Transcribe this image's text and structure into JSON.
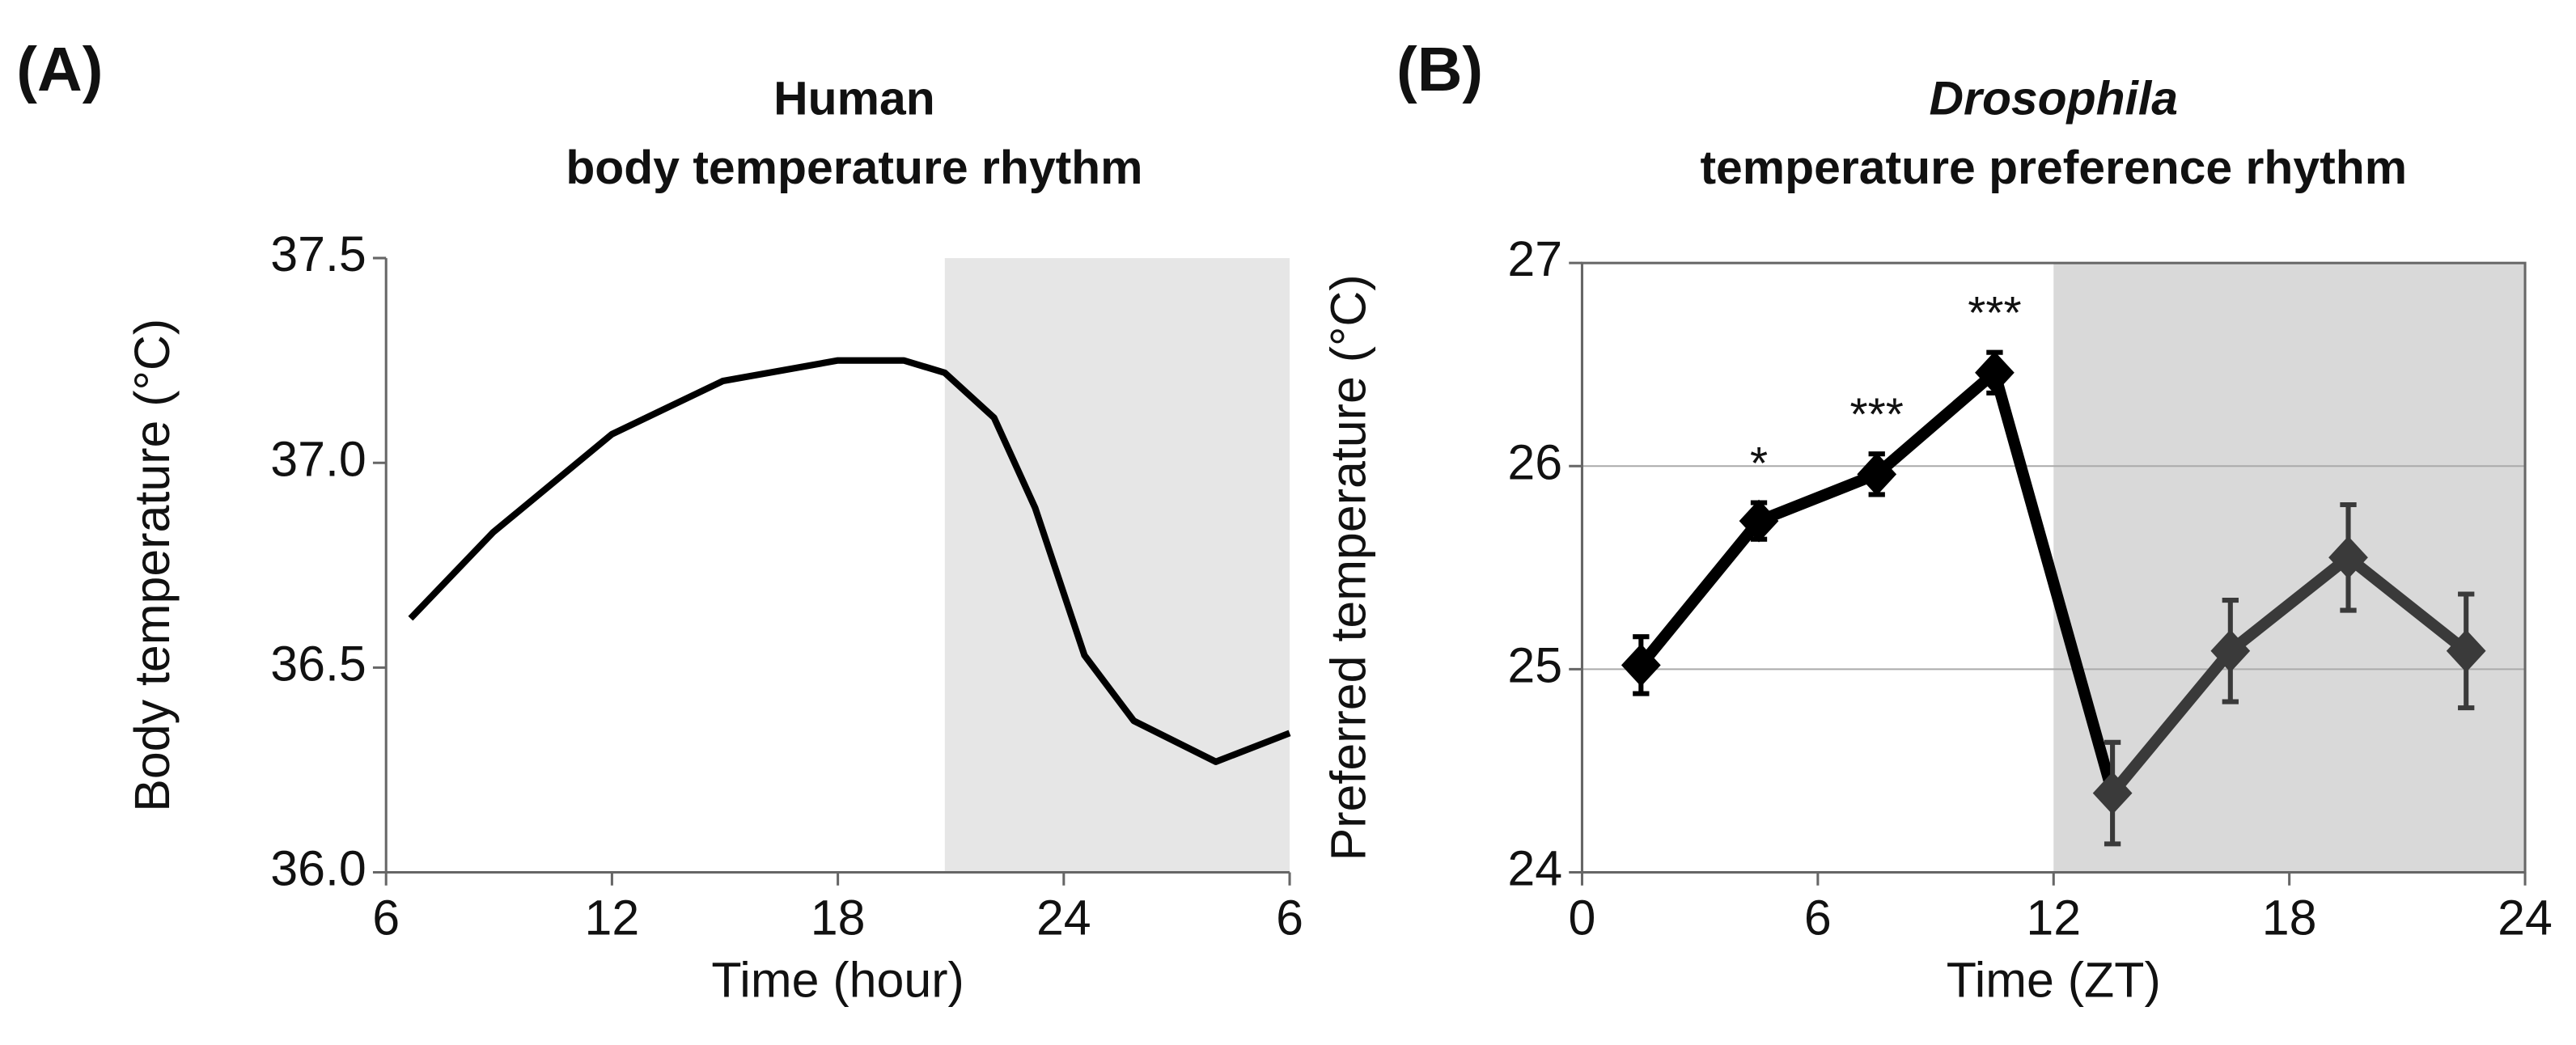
{
  "chart_data": [
    {
      "type": "line",
      "panel_label": "(A)",
      "title": "Human",
      "subtitle": "body temperature rhythm",
      "xlabel": "Time (hour)",
      "ylabel": "Body temperature (°C)",
      "x": [
        6.65,
        8.84,
        12,
        14.95,
        18,
        19.75,
        20.84,
        22.15,
        23.24,
        24.55,
        25.86,
        28.04,
        30
      ],
      "series": [
        {
          "color": "#000000",
          "values": [
            36.62,
            36.83,
            37.07,
            37.2,
            37.25,
            37.25,
            37.22,
            37.11,
            36.89,
            36.53,
            36.37,
            36.27,
            36.34
          ]
        }
      ],
      "xlim": [
        6,
        30
      ],
      "xticks": [
        6,
        12,
        18,
        24,
        {
          "value": 30,
          "label": "6"
        }
      ],
      "ylim": [
        36,
        37.5
      ],
      "yticks": [
        {
          "value": 36,
          "label": "36.0"
        },
        36.5,
        {
          "value": 37,
          "label": "37.0"
        },
        37.5
      ],
      "shade": [
        20.84,
        30
      ],
      "shade_color": "#e6e6e6",
      "grid": false,
      "frame": false
    },
    {
      "type": "errorline",
      "panel_label": "(B)",
      "title": "Drosophila",
      "subtitle": "temperature preference rhythm",
      "xlabel": "Time (ZT)",
      "ylabel": "Preferred temperature (°C)",
      "x": [
        1.5,
        4.5,
        7.5,
        10.5,
        13.5,
        16.5,
        19.5,
        22.5
      ],
      "series": [
        {
          "colors": [
            "#000000",
            "#000000",
            "#000000",
            "#000000",
            "#3a3a3a",
            "#3a3a3a",
            "#3a3a3a",
            "#3a3a3a"
          ],
          "values": [
            25.02,
            25.73,
            25.96,
            26.46,
            24.39,
            25.09,
            25.55,
            25.09
          ],
          "errors": [
            0.14,
            0.09,
            0.1,
            0.1,
            0.25,
            0.25,
            0.26,
            0.28
          ],
          "point_labels": [
            null,
            "*",
            "***",
            "***",
            null,
            null,
            null,
            null
          ]
        }
      ],
      "xlim": [
        0,
        24
      ],
      "xticks": [
        0,
        6,
        12,
        18,
        24
      ],
      "ylim": [
        24,
        27
      ],
      "yticks": [
        24,
        25,
        26,
        27
      ],
      "shade": [
        12,
        24
      ],
      "shade_color": "#d9d9d9",
      "grid": true,
      "frame": true
    }
  ]
}
